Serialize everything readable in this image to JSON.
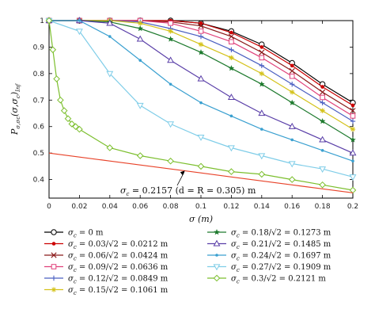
{
  "chart_data": {
    "type": "line",
    "xlabel": "σ (m)",
    "ylabel": "P_{σ,σc}(σ,σc)_{Inf}",
    "xlim": [
      0,
      0.2
    ],
    "ylim": [
      0.33,
      1.0
    ],
    "xticks": [
      0,
      0.02,
      0.04,
      0.06,
      0.08,
      0.1,
      0.12,
      0.14,
      0.16,
      0.18,
      0.2
    ],
    "xtick_labels": [
      "0",
      "0.02",
      "0.04",
      "0.06",
      "0.08",
      "0.1",
      "0.12",
      "0.14",
      "0.16",
      "0.18",
      "0.2"
    ],
    "yticks": [
      0.4,
      0.5,
      0.6,
      0.7,
      0.8,
      0.9,
      1
    ],
    "ytick_labels": [
      "0.4",
      "0.5",
      "0.6",
      "0.7",
      "0.8",
      "0.9",
      "1"
    ],
    "grid": false,
    "legend_position": "below plot, two columns",
    "x": [
      0,
      0.02,
      0.04,
      0.06,
      0.08,
      0.1,
      0.12,
      0.14,
      0.16,
      0.18,
      0.2
    ],
    "series": [
      {
        "name": "σc = 0 m",
        "color": "#000000",
        "marker": "circle-open",
        "values": [
          1,
          1,
          1,
          1,
          1,
          0.99,
          0.96,
          0.91,
          0.84,
          0.76,
          0.69
        ]
      },
      {
        "name": "σc = 0.03/√2 = 0.0212 m",
        "color": "#cc0000",
        "marker": "dot",
        "values": [
          1,
          1,
          1,
          1,
          1,
          0.99,
          0.955,
          0.9,
          0.83,
          0.75,
          0.68
        ]
      },
      {
        "name": "σc = 0.06/√2 = 0.0424 m",
        "color": "#8b1a1a",
        "marker": "x",
        "values": [
          1,
          1,
          1,
          1,
          0.995,
          0.98,
          0.94,
          0.88,
          0.81,
          0.73,
          0.66
        ]
      },
      {
        "name": "σc = 0.09/√2 = 0.0636 m",
        "color": "#e0407a",
        "marker": "square-open",
        "values": [
          1,
          1,
          1,
          1,
          0.99,
          0.96,
          0.92,
          0.86,
          0.79,
          0.71,
          0.64
        ]
      },
      {
        "name": "σc = 0.12/√2 = 0.0849 m",
        "color": "#4a5fc1",
        "marker": "plus",
        "values": [
          1,
          1,
          1,
          0.995,
          0.97,
          0.94,
          0.89,
          0.83,
          0.76,
          0.69,
          0.62
        ]
      },
      {
        "name": "σc = 0.15/√2 = 0.1061 m",
        "color": "#d4c21a",
        "marker": "asterisk",
        "values": [
          1,
          1,
          1,
          0.99,
          0.96,
          0.91,
          0.86,
          0.8,
          0.73,
          0.66,
          0.59
        ]
      },
      {
        "name": "σc = 0.18/√2 = 0.1273 m",
        "color": "#1e7a2e",
        "marker": "star",
        "values": [
          1,
          1,
          0.995,
          0.97,
          0.93,
          0.88,
          0.82,
          0.76,
          0.69,
          0.62,
          0.55
        ]
      },
      {
        "name": "σc = 0.21/√2 = 0.1485 m",
        "color": "#5a3fa8",
        "marker": "triangle-open",
        "values": [
          1,
          1,
          0.99,
          0.93,
          0.85,
          0.78,
          0.71,
          0.65,
          0.6,
          0.55,
          0.5
        ]
      },
      {
        "name": "σc = 0.24/√2 = 0.1697 m",
        "color": "#3aa0d0",
        "marker": "dot-small",
        "values": [
          1,
          1,
          0.94,
          0.85,
          0.76,
          0.69,
          0.64,
          0.59,
          0.55,
          0.51,
          0.47
        ]
      },
      {
        "name": "σc = 0.27/√2 = 0.1909 m",
        "color": "#7fcde8",
        "marker": "triangle-down-open",
        "values": [
          1,
          0.96,
          0.8,
          0.68,
          0.61,
          0.56,
          0.52,
          0.49,
          0.46,
          0.44,
          0.41
        ]
      },
      {
        "name": "σc = 0.3/√2 = 0.2121 m",
        "color": "#7cbf2e",
        "marker": "diamond-open",
        "x": [
          0,
          0.0025,
          0.005,
          0.0075,
          0.01,
          0.0125,
          0.015,
          0.0175,
          0.02,
          0.04,
          0.06,
          0.08,
          0.1,
          0.12,
          0.14,
          0.16,
          0.18,
          0.2
        ],
        "values": [
          1,
          0.89,
          0.78,
          0.7,
          0.66,
          0.63,
          0.61,
          0.6,
          0.59,
          0.52,
          0.49,
          0.47,
          0.45,
          0.43,
          0.42,
          0.4,
          0.38,
          0.36
        ]
      },
      {
        "name": "σc = 0.2157 (d = R = 0.305) m",
        "color": "#e8432a",
        "marker": "none",
        "values": [
          0.5,
          0.485,
          0.47,
          0.455,
          0.44,
          0.425,
          0.41,
          0.395,
          0.38,
          0.365,
          0.35
        ]
      }
    ],
    "annotation": {
      "text": "σc = 0.2157 (d = R = 0.305) m",
      "points_to_x": 0.09,
      "points_to_y": 0.437
    }
  },
  "legend": {
    "left": [
      {
        "label": "σc = 0 m",
        "series": 0
      },
      {
        "label": "σc = 0.03/√2 = 0.0212 m",
        "series": 1
      },
      {
        "label": "σc = 0.06/√2 = 0.0424 m",
        "series": 2
      },
      {
        "label": "σc = 0.09/√2 = 0.0636 m",
        "series": 3
      },
      {
        "label": "σc = 0.12/√2 = 0.0849 m",
        "series": 4
      },
      {
        "label": "σc = 0.15/√2 = 0.1061 m",
        "series": 5
      }
    ],
    "right": [
      {
        "label": "σc = 0.18/√2 = 0.1273 m",
        "series": 6
      },
      {
        "label": "σc = 0.21/√2 = 0.1485 m",
        "series": 7
      },
      {
        "label": "σc = 0.24/√2 = 0.1697 m",
        "series": 8
      },
      {
        "label": "σc = 0.27/√2 = 0.1909 m",
        "series": 9
      },
      {
        "label": "σc = 0.3/√2 = 0.2121 m",
        "series": 10
      }
    ]
  }
}
